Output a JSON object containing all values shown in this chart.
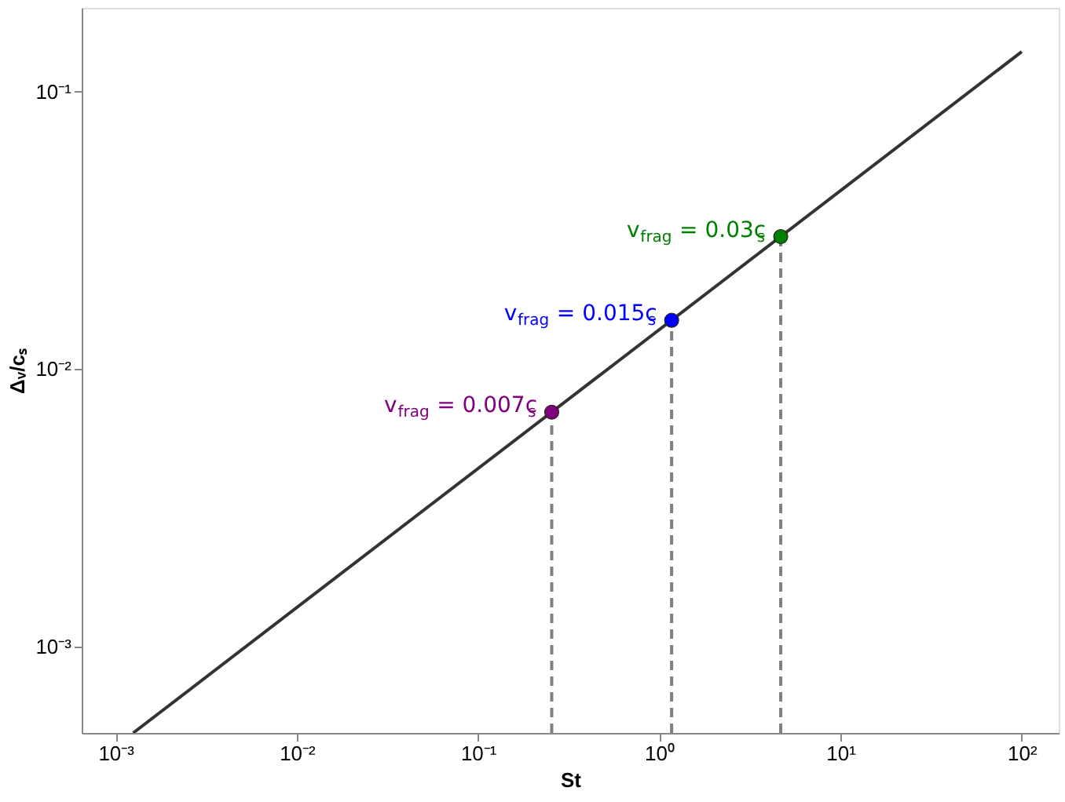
{
  "chart_data": {
    "type": "line",
    "xlabel": "St",
    "ylabel": "Δᵥ/cₛ",
    "log": "xy",
    "grid": false,
    "legend": false,
    "xlim": [
      0.00065,
      160
    ],
    "ylim": [
      0.00049,
      0.2
    ],
    "xticks": [
      {
        "value": 0.001,
        "label": "10⁻³"
      },
      {
        "value": 0.01,
        "label": "10⁻²"
      },
      {
        "value": 0.1,
        "label": "10⁻¹"
      },
      {
        "value": 1,
        "label": "10⁰"
      },
      {
        "value": 10,
        "label": "10¹"
      },
      {
        "value": 100,
        "label": "10²"
      }
    ],
    "yticks": [
      {
        "value": 0.001,
        "label": "10⁻³"
      },
      {
        "value": 0.01,
        "label": "10⁻²"
      },
      {
        "value": 0.1,
        "label": "10⁻¹"
      }
    ],
    "series": [
      {
        "color": "#333333",
        "line_style": "solid",
        "marker": "none",
        "x": [
          0.00125,
          100
        ],
        "values": [
          0.00049,
          0.139
        ]
      },
      {
        "color": "#808080",
        "line_style": "dashed",
        "marker": "none",
        "x": [
          0.255,
          0.255
        ],
        "values": [
          0.00049,
          0.007
        ]
      },
      {
        "color": "#808080",
        "line_style": "dashed",
        "marker": "none",
        "x": [
          1.17,
          1.17
        ],
        "values": [
          0.00049,
          0.015
        ]
      },
      {
        "color": "#808080",
        "line_style": "dashed",
        "marker": "none",
        "x": [
          4.68,
          4.68
        ],
        "values": [
          0.00049,
          0.03
        ]
      },
      {
        "type": "scatter",
        "marker": "circle",
        "x": [
          0.255,
          1.17,
          4.68
        ],
        "values": [
          0.007,
          0.015,
          0.03
        ],
        "colors": [
          "#800080",
          "#0000ff",
          "#008000"
        ]
      }
    ],
    "annotations": [
      {
        "text": "v$_{frag}$ = 0.007c$_{s}$",
        "x": 0.255,
        "y": 0.007
      },
      {
        "text": "v$_{frag}$ = 0.015c$_{s}$",
        "x": 1.17,
        "y": 0.015
      },
      {
        "text": "v$_{frag}$ = 0.03c$_{s}$",
        "x": 4.68,
        "y": 0.03
      }
    ]
  }
}
